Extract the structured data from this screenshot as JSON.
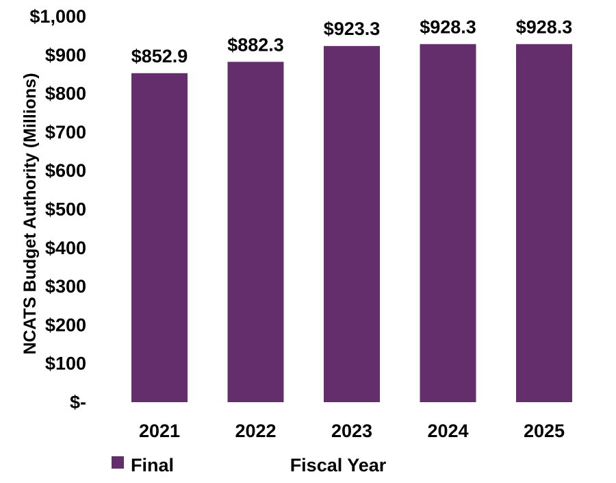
{
  "chart_data": {
    "type": "bar",
    "title": "",
    "xlabel": "Fiscal Year",
    "ylabel": "NCATS Budget Authority (Millions)",
    "categories": [
      "2021",
      "2022",
      "2023",
      "2024",
      "2025"
    ],
    "series": [
      {
        "name": "Final",
        "values": [
          852.9,
          882.3,
          923.3,
          928.3,
          928.3
        ],
        "data_labels": [
          "$852.9",
          "$882.3",
          "$923.3",
          "$928.3",
          "$928.3"
        ]
      }
    ],
    "ylim": [
      0,
      1000
    ],
    "yticks": [
      0,
      100,
      200,
      300,
      400,
      500,
      600,
      700,
      800,
      900,
      1000
    ],
    "ytick_labels": [
      "$-",
      "$100",
      "$200",
      "$300",
      "$400",
      "$500",
      "$600",
      "$700",
      "$800",
      "$900",
      "$1,000"
    ],
    "grid": false,
    "legend_position": "bottom-left"
  },
  "colors": {
    "bar": "#642d6b"
  }
}
